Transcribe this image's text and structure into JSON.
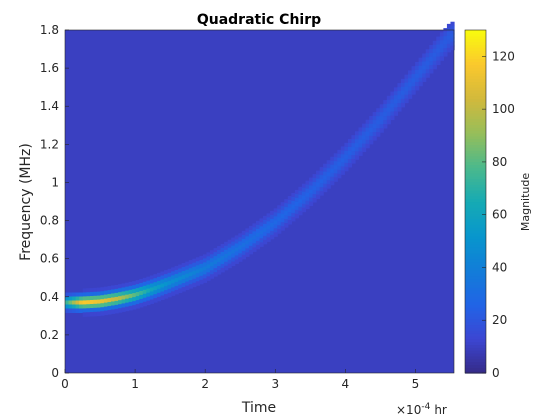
{
  "chart_data": {
    "type": "heatmap",
    "title": "Quadratic Chirp",
    "xlabel": "Time",
    "ylabel": "Frequency (MHz)",
    "x_exponent_base": "×10",
    "x_exponent_power": "-4",
    "x_unit": "hr",
    "xlim": [
      0,
      5.55
    ],
    "ylim": [
      0,
      1.8
    ],
    "x_ticks": [
      "0",
      "1",
      "2",
      "3",
      "4",
      "5"
    ],
    "y_ticks": [
      "0",
      "0.2",
      "0.4",
      "0.6",
      "0.8",
      "1",
      "1.2",
      "1.4",
      "1.6",
      "1.8"
    ],
    "colorbar": {
      "label": "Magnitude",
      "range": [
        0,
        130
      ],
      "ticks": [
        "0",
        "20",
        "40",
        "60",
        "80",
        "100",
        "120"
      ],
      "colormap": "parula"
    },
    "background_value": 10,
    "ridge": {
      "description_free": true,
      "points": [
        {
          "t": 0.0,
          "f": 0.37,
          "mag": 70
        },
        {
          "t": 0.25,
          "f": 0.37,
          "mag": 118
        },
        {
          "t": 0.5,
          "f": 0.375,
          "mag": 112
        },
        {
          "t": 0.75,
          "f": 0.39,
          "mag": 100
        },
        {
          "t": 1.0,
          "f": 0.41,
          "mag": 80
        },
        {
          "t": 1.25,
          "f": 0.44,
          "mag": 60
        },
        {
          "t": 1.5,
          "f": 0.475,
          "mag": 48
        },
        {
          "t": 2.0,
          "f": 0.55,
          "mag": 38
        },
        {
          "t": 2.5,
          "f": 0.66,
          "mag": 32
        },
        {
          "t": 3.0,
          "f": 0.79,
          "mag": 28
        },
        {
          "t": 3.5,
          "f": 0.95,
          "mag": 25
        },
        {
          "t": 4.0,
          "f": 1.13,
          "mag": 24
        },
        {
          "t": 4.5,
          "f": 1.33,
          "mag": 23
        },
        {
          "t": 5.0,
          "f": 1.55,
          "mag": 23
        },
        {
          "t": 5.5,
          "f": 1.77,
          "mag": 22
        }
      ]
    }
  }
}
